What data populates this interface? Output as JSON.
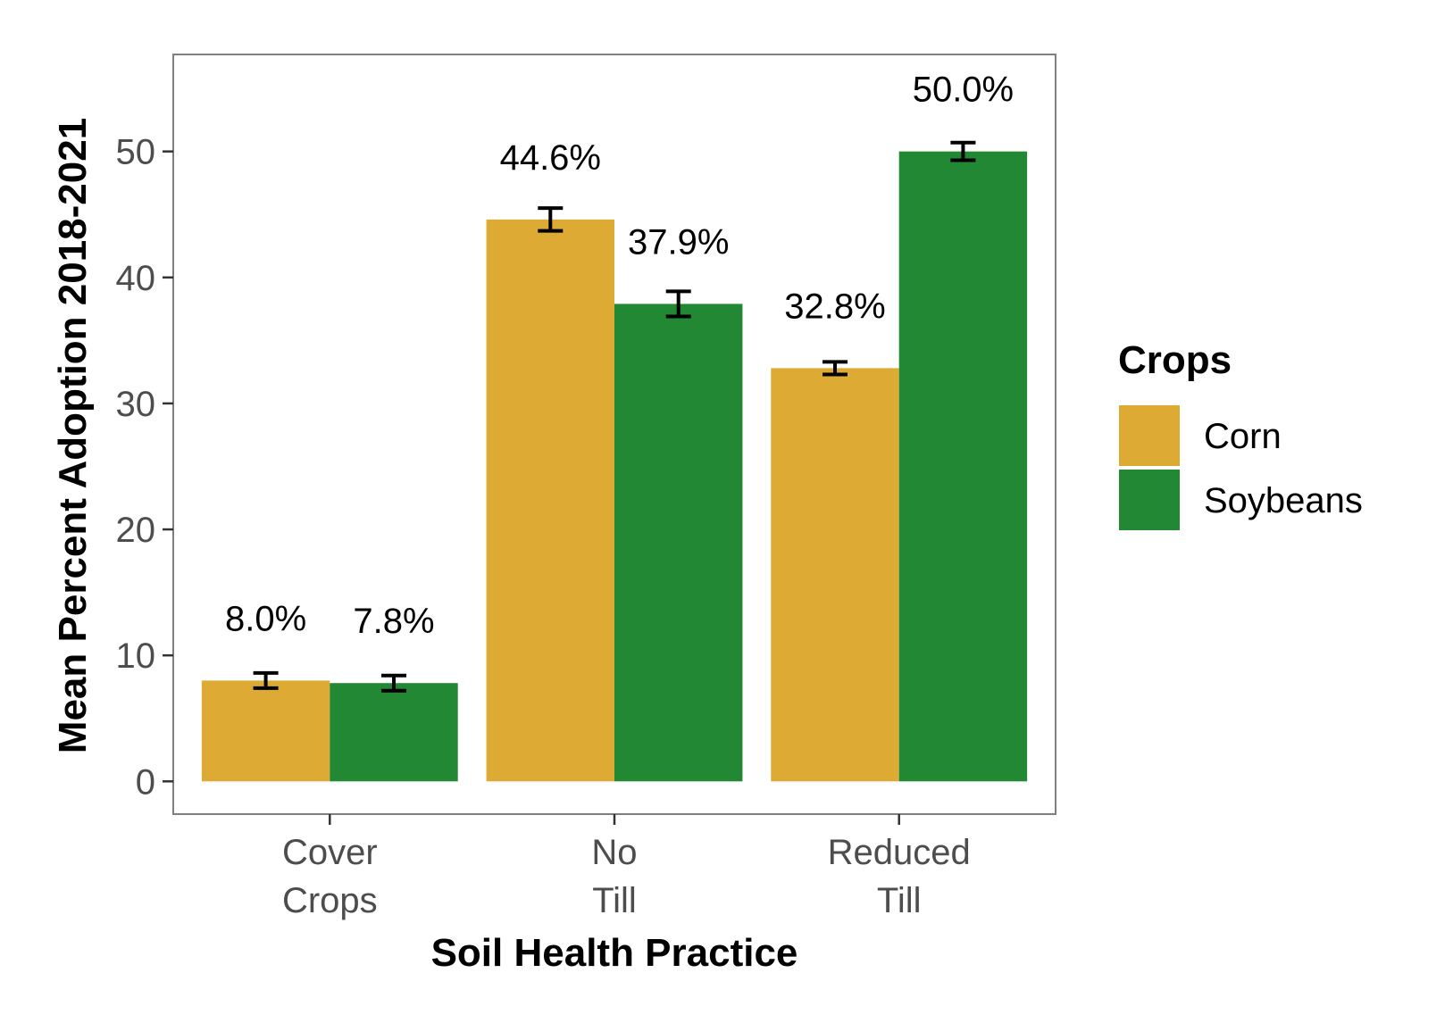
{
  "chart_data": {
    "type": "bar",
    "categories": [
      [
        "Cover",
        "Crops"
      ],
      [
        "No",
        "Till"
      ],
      [
        "Reduced",
        "Till"
      ]
    ],
    "series": [
      {
        "name": "Corn",
        "color": "#DDAA33",
        "values": [
          8.0,
          44.6,
          32.8
        ],
        "error": [
          0.6,
          0.9,
          0.5
        ],
        "labels": [
          "8.0%",
          "44.6%",
          "32.8%"
        ]
      },
      {
        "name": "Soybeans",
        "color": "#228833",
        "values": [
          7.8,
          37.9,
          50.0
        ],
        "error": [
          0.6,
          1.0,
          0.7
        ],
        "labels": [
          "7.8%",
          "37.9%",
          "50.0%"
        ]
      }
    ],
    "xlabel": "Soil Health Practice",
    "ylabel": "Mean Percent Adoption 2018-2021",
    "ylim": [
      -2.6,
      57.7
    ],
    "yticks": [
      0,
      10,
      20,
      30,
      40,
      50
    ],
    "legend_title": "Crops",
    "legend_position": "right",
    "grid": false,
    "error_bars": true
  }
}
